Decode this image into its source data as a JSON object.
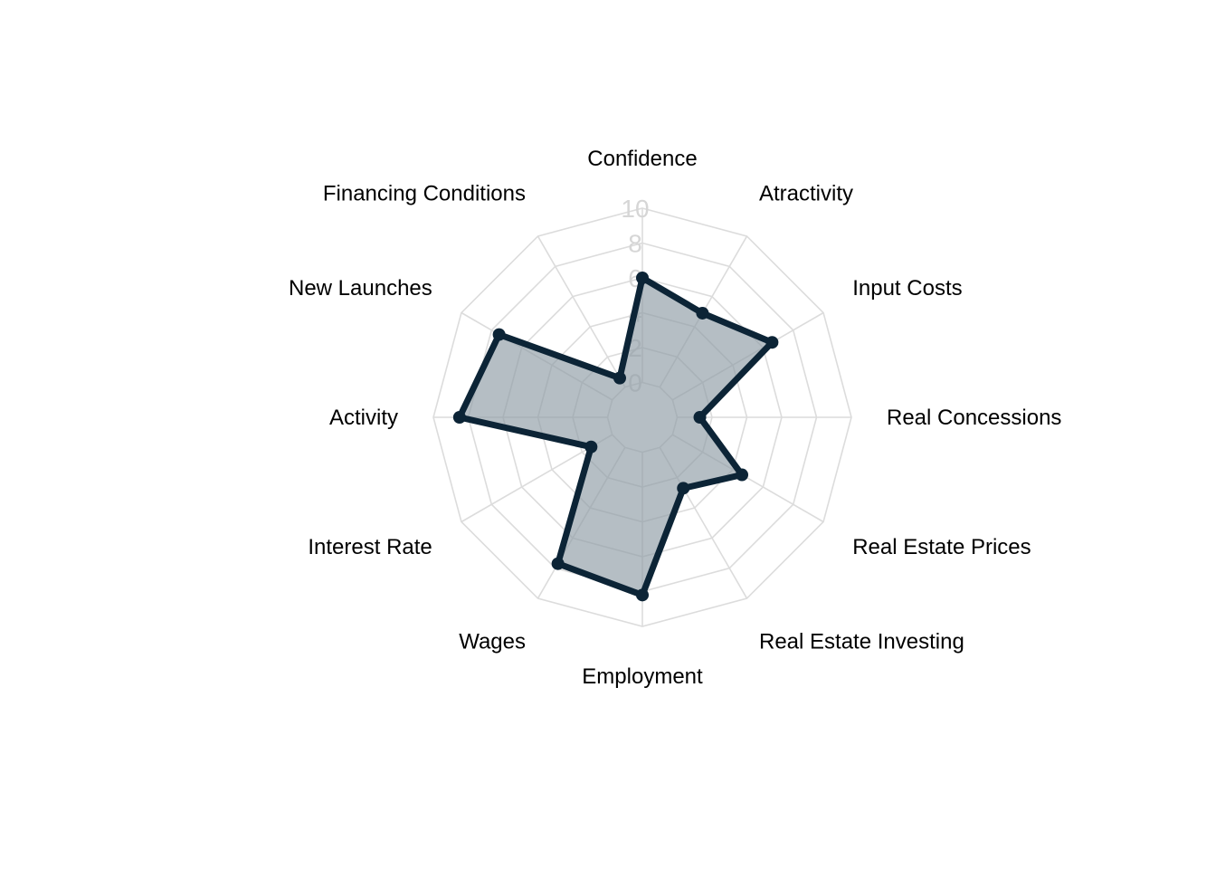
{
  "chart_data": {
    "type": "radar",
    "axes": [
      "Confidence",
      "Atractivity",
      "Input Costs",
      "Real Concessions",
      "Real Estate Prices",
      "Real Estate Investing",
      "Employment",
      "Wages",
      "Interest Rate",
      "Activity",
      "New Launches",
      "Financing Conditions"
    ],
    "series": [
      {
        "values": [
          6.0,
          4.9,
          6.6,
          1.3,
          4.6,
          2.7,
          8.2,
          7.7,
          1.4,
          8.5,
          7.5,
          0.6
        ]
      }
    ],
    "rlim": [
      -2,
      10
    ],
    "ticks": [
      0,
      2,
      4,
      6,
      8,
      10
    ],
    "tick_labels": [
      "0",
      "2",
      "4",
      "6",
      "8",
      "10"
    ],
    "grid": true,
    "colors": {
      "line": "#0c2436",
      "fill": "#8d9ba5",
      "fill_opacity": 0.65,
      "grid": "#dcdcdc",
      "tick_label": "#d6d6d6"
    }
  }
}
